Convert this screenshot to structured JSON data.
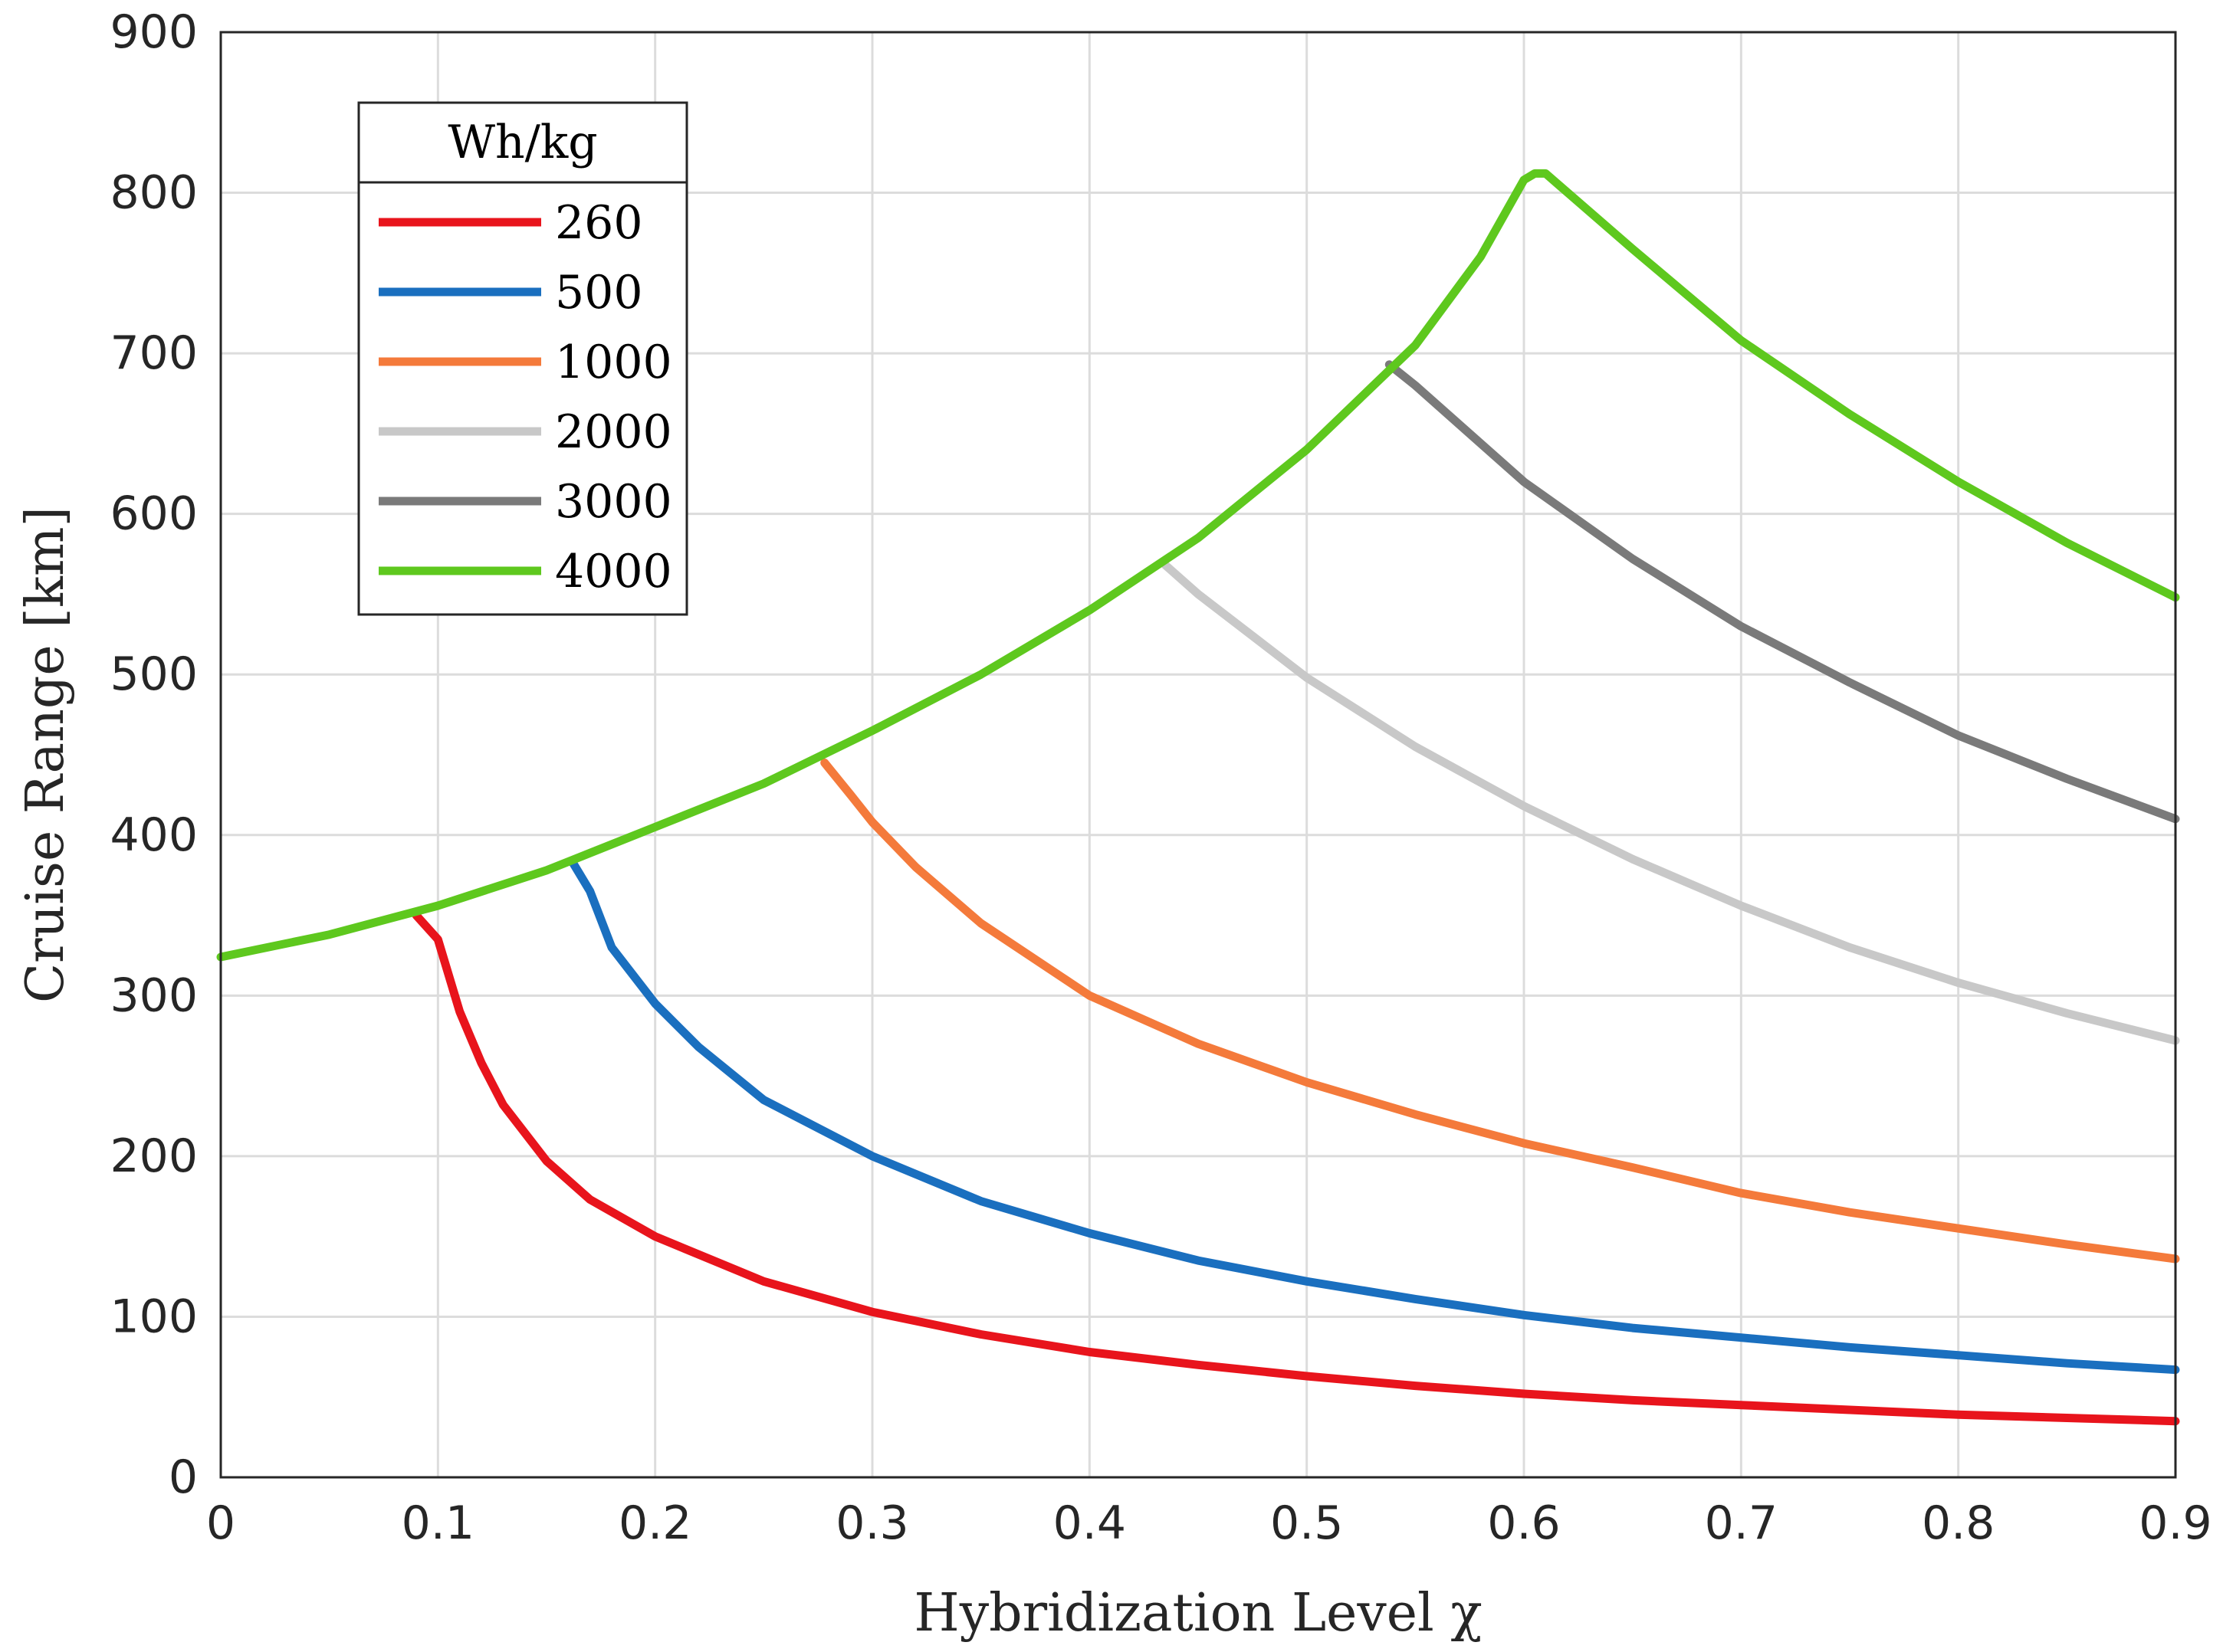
{
  "chart_data": {
    "type": "line",
    "title": "",
    "xlabel": "Hybridization Level χ",
    "ylabel": "Cruise Range [km]",
    "xlim": [
      0,
      0.9
    ],
    "ylim": [
      0,
      900
    ],
    "xticks": [
      0,
      0.1,
      0.2,
      0.3,
      0.4,
      0.5,
      0.6,
      0.7,
      0.8,
      0.9
    ],
    "xtick_labels": [
      "0",
      "0.1",
      "0.2",
      "0.3",
      "0.4",
      "0.5",
      "0.6",
      "0.7",
      "0.8",
      "0.9"
    ],
    "yticks": [
      0,
      100,
      200,
      300,
      400,
      500,
      600,
      700,
      800,
      900
    ],
    "ytick_labels": [
      "0",
      "100",
      "200",
      "300",
      "400",
      "500",
      "600",
      "700",
      "800",
      "900"
    ],
    "grid": true,
    "legend": {
      "title": "Wh/kg",
      "position": "top-left"
    },
    "series": [
      {
        "name": "260",
        "color": "#e8141c",
        "points": [
          [
            0.09,
            350
          ],
          [
            0.1,
            335
          ],
          [
            0.11,
            290
          ],
          [
            0.12,
            258
          ],
          [
            0.13,
            232
          ],
          [
            0.15,
            197
          ],
          [
            0.17,
            173
          ],
          [
            0.2,
            150
          ],
          [
            0.25,
            122
          ],
          [
            0.3,
            103
          ],
          [
            0.35,
            89
          ],
          [
            0.4,
            78
          ],
          [
            0.45,
            70
          ],
          [
            0.5,
            63
          ],
          [
            0.55,
            57
          ],
          [
            0.6,
            52
          ],
          [
            0.65,
            48
          ],
          [
            0.7,
            45
          ],
          [
            0.75,
            42
          ],
          [
            0.8,
            39
          ],
          [
            0.85,
            37
          ],
          [
            0.9,
            35
          ]
        ]
      },
      {
        "name": "500",
        "color": "#1a6fbf",
        "points": [
          [
            0.162,
            383
          ],
          [
            0.17,
            365
          ],
          [
            0.18,
            330
          ],
          [
            0.2,
            295
          ],
          [
            0.22,
            268
          ],
          [
            0.25,
            235
          ],
          [
            0.3,
            200
          ],
          [
            0.35,
            172
          ],
          [
            0.4,
            152
          ],
          [
            0.45,
            135
          ],
          [
            0.5,
            122
          ],
          [
            0.55,
            111
          ],
          [
            0.6,
            101
          ],
          [
            0.65,
            93
          ],
          [
            0.7,
            87
          ],
          [
            0.75,
            81
          ],
          [
            0.8,
            76
          ],
          [
            0.85,
            71
          ],
          [
            0.9,
            67
          ]
        ]
      },
      {
        "name": "1000",
        "color": "#f47a3b",
        "points": [
          [
            0.278,
            445
          ],
          [
            0.29,
            425
          ],
          [
            0.3,
            408
          ],
          [
            0.32,
            380
          ],
          [
            0.35,
            345
          ],
          [
            0.4,
            300
          ],
          [
            0.45,
            270
          ],
          [
            0.5,
            246
          ],
          [
            0.55,
            226
          ],
          [
            0.6,
            208
          ],
          [
            0.65,
            193
          ],
          [
            0.7,
            177
          ],
          [
            0.75,
            165
          ],
          [
            0.8,
            155
          ],
          [
            0.85,
            145
          ],
          [
            0.9,
            136
          ]
        ]
      },
      {
        "name": "2000",
        "color": "#c8c8c8",
        "points": [
          [
            0.435,
            568
          ],
          [
            0.45,
            550
          ],
          [
            0.5,
            498
          ],
          [
            0.55,
            455
          ],
          [
            0.6,
            418
          ],
          [
            0.65,
            385
          ],
          [
            0.7,
            356
          ],
          [
            0.75,
            330
          ],
          [
            0.8,
            308
          ],
          [
            0.85,
            289
          ],
          [
            0.9,
            272
          ]
        ]
      },
      {
        "name": "3000",
        "color": "#7a7a7a",
        "points": [
          [
            0.538,
            693
          ],
          [
            0.55,
            680
          ],
          [
            0.6,
            620
          ],
          [
            0.65,
            572
          ],
          [
            0.7,
            530
          ],
          [
            0.75,
            495
          ],
          [
            0.8,
            462
          ],
          [
            0.85,
            435
          ],
          [
            0.9,
            410
          ]
        ]
      },
      {
        "name": "4000",
        "color": "#5ec81e",
        "points": [
          [
            0,
            324
          ],
          [
            0.05,
            338
          ],
          [
            0.1,
            356
          ],
          [
            0.15,
            378
          ],
          [
            0.2,
            405
          ],
          [
            0.25,
            432
          ],
          [
            0.3,
            465
          ],
          [
            0.35,
            500
          ],
          [
            0.4,
            540
          ],
          [
            0.45,
            585
          ],
          [
            0.5,
            640
          ],
          [
            0.55,
            705
          ],
          [
            0.58,
            760
          ],
          [
            0.6,
            808
          ],
          [
            0.605,
            812
          ],
          [
            0.61,
            812
          ],
          [
            0.65,
            765
          ],
          [
            0.7,
            708
          ],
          [
            0.75,
            662
          ],
          [
            0.8,
            620
          ],
          [
            0.85,
            582
          ],
          [
            0.9,
            548
          ]
        ]
      }
    ]
  }
}
